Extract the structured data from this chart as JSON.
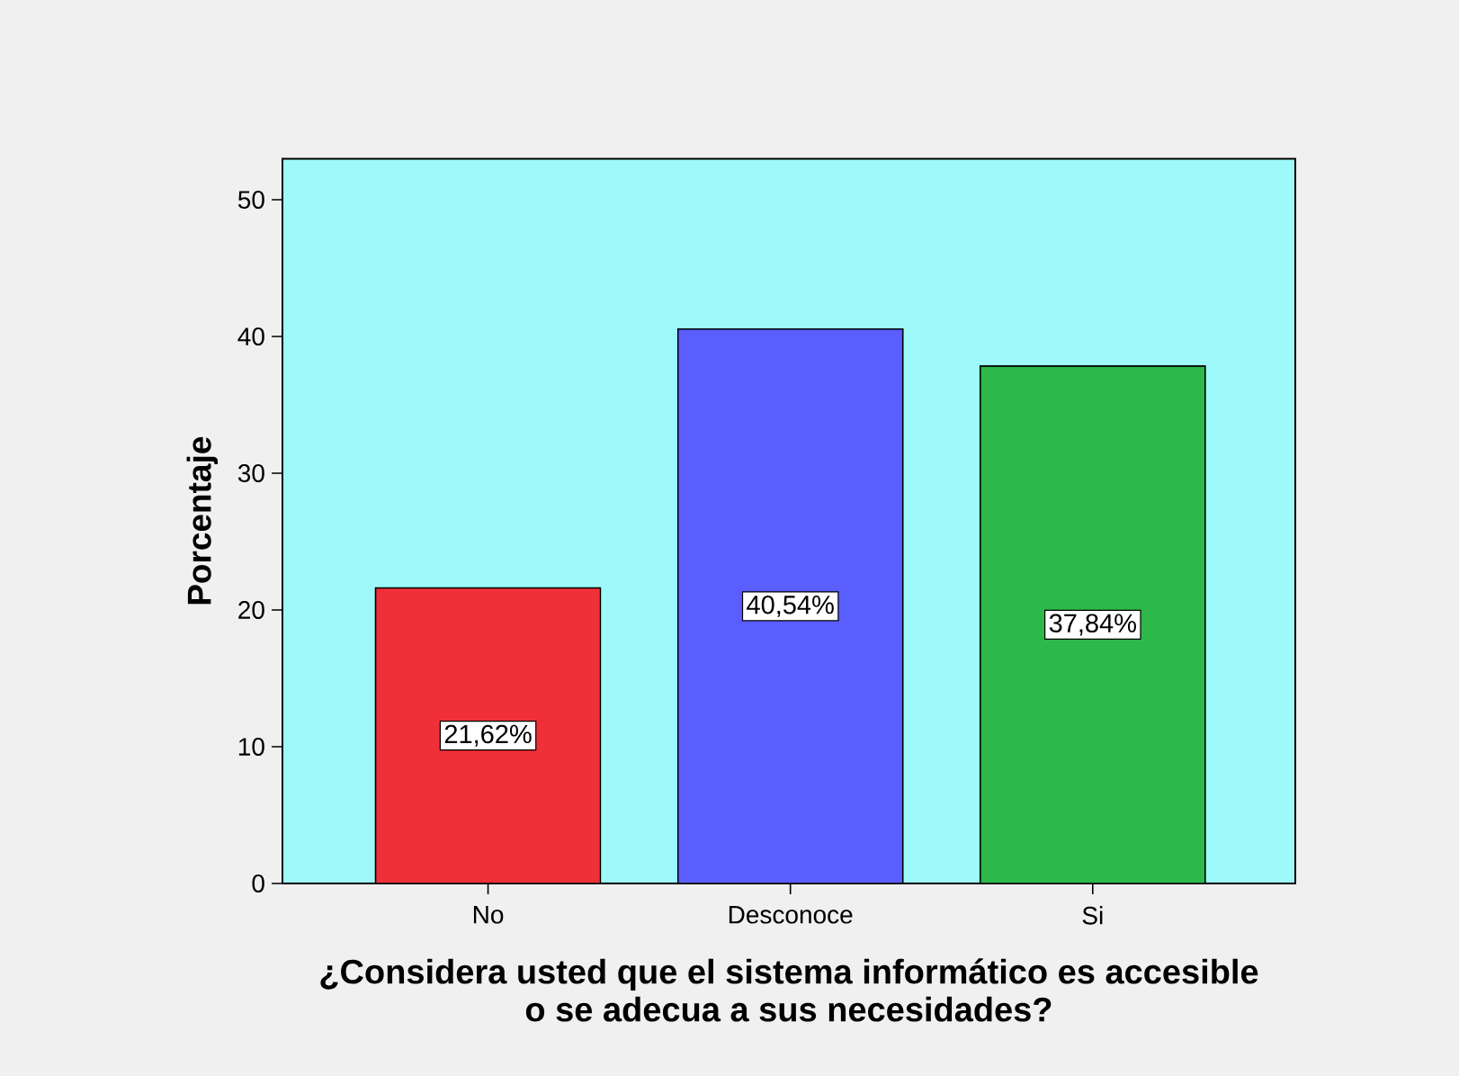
{
  "chart_data": {
    "type": "bar",
    "xlabel": "¿Considera usted que el sistema informático es accesible o se adecua a sus necesidades?",
    "ylabel": "Porcentaje",
    "categories": [
      "No",
      "Desconoce",
      "Si"
    ],
    "values": [
      21.62,
      40.54,
      37.84
    ],
    "colors": [
      "#ef3038",
      "#5a5eff",
      "#2db84a"
    ],
    "value_labels": [
      "21,62%",
      "40,54%",
      "37,84%"
    ],
    "ylim": [
      0,
      53
    ],
    "yticks": [
      0,
      10,
      20,
      30,
      40,
      50
    ]
  }
}
